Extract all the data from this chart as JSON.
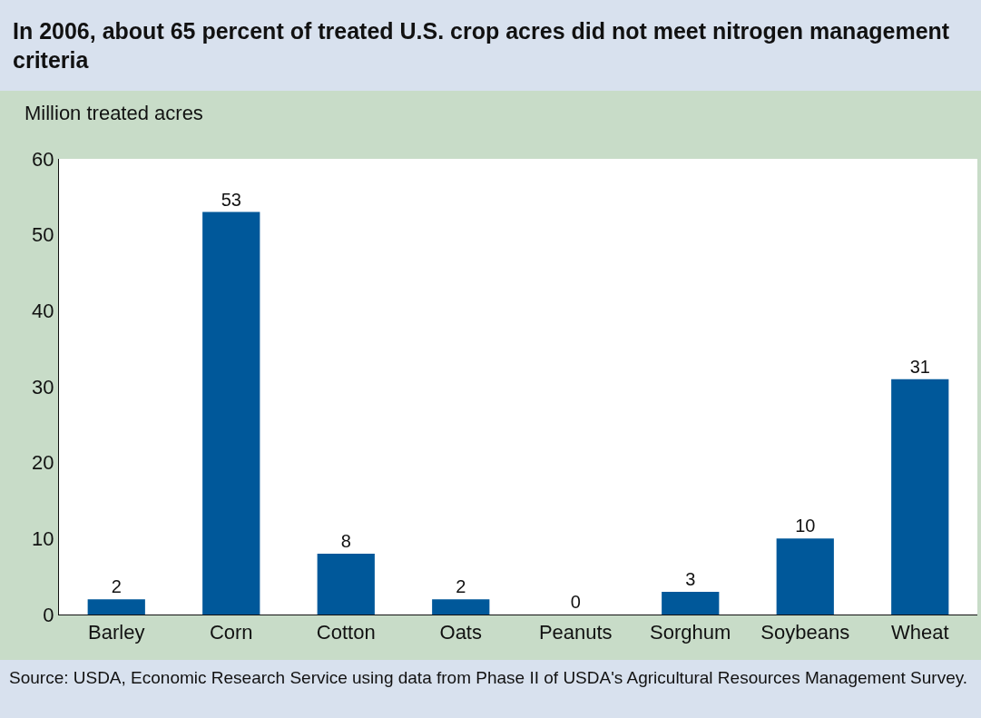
{
  "chart_data": {
    "type": "bar",
    "title": "In 2006, about 65 percent of treated U.S. crop acres did not meet nitrogen management criteria",
    "ylabel": "Million treated acres",
    "categories": [
      "Barley",
      "Corn",
      "Cotton",
      "Oats",
      "Peanuts",
      "Sorghum",
      "Soybeans",
      "Wheat"
    ],
    "values": [
      2,
      53,
      8,
      2,
      0,
      3,
      10,
      31
    ],
    "color": "#00589a",
    "ylim": [
      0,
      60
    ],
    "yticks": [
      0,
      10,
      20,
      30,
      40,
      50,
      60
    ],
    "data_labels": true,
    "annotations": [
      "Source:  USDA, Economic Research Service using data from Phase II of USDA's Agricultural Resources Management Survey."
    ]
  }
}
